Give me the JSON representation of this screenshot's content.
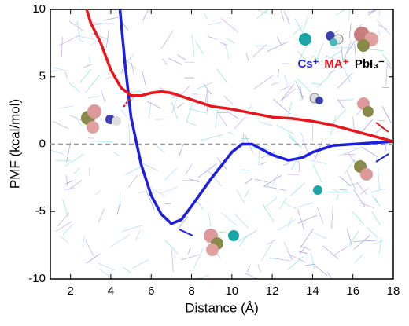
{
  "chart_data": {
    "type": "line",
    "x_label": "Distance (Å)",
    "y_label": "PMF (kcal/mol)",
    "xlim": [
      1,
      18
    ],
    "xticks": [
      2,
      4,
      6,
      8,
      10,
      12,
      14,
      16,
      18
    ],
    "ylim": [
      -10,
      10
    ],
    "yticks": [
      -10,
      -5,
      0,
      5,
      10
    ],
    "zero_line": true,
    "series": [
      {
        "name": "Cs⁺",
        "color": "#1c1fe0",
        "x": [
          4.45,
          4.7,
          5,
          5.5,
          6,
          6.5,
          7,
          7.5,
          8,
          9,
          10,
          10.5,
          11,
          12,
          12.8,
          13.5,
          14,
          15,
          16,
          17,
          18
        ],
        "values": [
          10,
          6,
          2,
          -1.5,
          -3.8,
          -5.2,
          -5.9,
          -5.6,
          -4.6,
          -2.5,
          -0.6,
          0,
          0,
          -0.8,
          -1.2,
          -1.0,
          -0.6,
          -0.1,
          0,
          0.1,
          0.2
        ]
      },
      {
        "name": "MA⁺",
        "color": "#e8161b",
        "x": [
          2.8,
          3,
          3.5,
          4,
          4.5,
          5,
          5.5,
          6,
          6.5,
          7,
          8,
          9,
          10,
          11,
          12,
          13,
          14,
          15,
          16,
          17,
          18
        ],
        "values": [
          10,
          9,
          7.5,
          5.5,
          4.2,
          3.6,
          3.6,
          3.8,
          3.9,
          3.8,
          3.3,
          2.8,
          2.6,
          2.3,
          2.0,
          1.9,
          1.7,
          1.4,
          1.0,
          0.6,
          0.2
        ]
      }
    ],
    "annotation": "PbI₃⁻"
  }
}
